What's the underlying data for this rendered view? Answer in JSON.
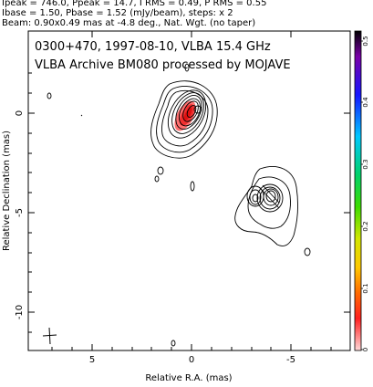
{
  "header": {
    "line1": "Ipeak = 746.0, Ppeak = 14.7, I RMS = 0.49, P RMS = 0.55",
    "line2": "Ibase = 1.50, Pbase = 1.52 (mJy/beam), steps: x 2",
    "line3": "Beam: 0.90x0.49 mas at -4.8 deg., Nat. Wgt. (no taper)"
  },
  "plot": {
    "annotation_line1": "0300+470, 1997-08-10, VLBA 15.4 GHz",
    "annotation_line2": "VLBA Archive BM080 processed by MOJAVE",
    "xlabel": "Relative R.A. (mas)",
    "ylabel": "Relative Declination (mas)",
    "xticks": [
      "5",
      "0",
      "-5"
    ],
    "yticks": [
      "0",
      "-5",
      "-10"
    ]
  },
  "colorbar": {
    "ticks": [
      "0.5",
      "0.4",
      "0.3",
      "0.2",
      "0.1",
      "0"
    ],
    "colors": [
      "#000000",
      "#7a00a8",
      "#1515ff",
      "#00c8ff",
      "#00d26a",
      "#3cdc00",
      "#d2e600",
      "#ffc800",
      "#ff6a00",
      "#ff2020",
      "#ffd8d8"
    ]
  }
}
